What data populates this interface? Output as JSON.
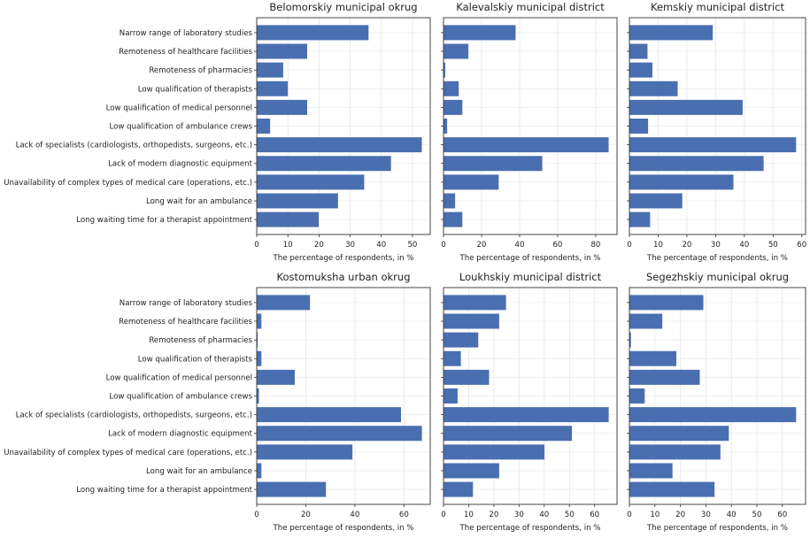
{
  "chart_data": {
    "type": "bar",
    "orientation": "horizontal",
    "bar_color": "#4a6fb0",
    "grid": true,
    "categories": [
      "Narrow range of laboratory studies",
      "Remoteness of healthcare facilities",
      "Remoteness of pharmacies",
      "Low qualification of therapists",
      "Low qualification of medical personnel",
      "Low qualification of ambulance crews",
      "Lack of specialists (cardiologists, orthopedists, surgeons, etc.)",
      "Lack of modern diagnostic equipment",
      "Unavailability of complex types of medical care (operations, etc.)",
      "Long wait for an ambulance",
      "Long waiting time for a therapist appointment"
    ],
    "panels": [
      {
        "title": "Belomorskiy municipal okrug",
        "xlabel": "The percentage of respondents, in %",
        "xlim": [
          0,
          55.7
        ],
        "xticks": [
          0,
          10,
          20,
          30,
          40,
          50
        ],
        "values": [
          35.9,
          16.2,
          8.5,
          10.0,
          16.2,
          4.3,
          53.0,
          43.1,
          34.5,
          26.1,
          19.9
        ]
      },
      {
        "title": "Kalevalskiy municipal district",
        "xlabel": "The percentage of respondents, in %",
        "xlim": [
          0,
          91.2
        ],
        "xticks": [
          0,
          20,
          40,
          60,
          80
        ],
        "values": [
          37.9,
          13.1,
          0.9,
          8.0,
          9.9,
          1.9,
          86.8,
          51.9,
          29.0,
          6.1,
          9.9
        ]
      },
      {
        "title": "Kemskiy municipal district",
        "xlabel": "The percentage of respondents, in %",
        "xlim": [
          0,
          61.3
        ],
        "xticks": [
          0,
          10,
          20,
          30,
          40,
          50,
          60
        ],
        "values": [
          29.0,
          6.3,
          8.0,
          16.8,
          39.4,
          6.5,
          58.0,
          46.7,
          36.2,
          18.4,
          7.2
        ]
      },
      {
        "title": "Kostomuksha urban okrug",
        "xlabel": "The percentage of respondents, in %",
        "xlim": [
          0,
          70.7
        ],
        "xticks": [
          0,
          20,
          40,
          60
        ],
        "values": [
          21.7,
          1.9,
          0.4,
          1.9,
          15.5,
          0.9,
          58.8,
          67.3,
          39.0,
          1.9,
          28.2
        ]
      },
      {
        "title": "Loukhskiy municipal district",
        "xlabel": "The percentage of respondents, in %",
        "xlim": [
          0,
          68.9
        ],
        "xticks": [
          0,
          10,
          20,
          30,
          40,
          50,
          60
        ],
        "values": [
          24.8,
          22.1,
          13.8,
          6.9,
          18.1,
          5.6,
          65.6,
          51.0,
          40.1,
          22.1,
          11.7
        ]
      },
      {
        "title": "Segezhskiy municipal okrug",
        "xlabel": "The percentage of respondents, in %",
        "xlim": [
          0,
          69.1
        ],
        "xticks": [
          0,
          10,
          20,
          30,
          40,
          50,
          60
        ],
        "values": [
          29.0,
          12.9,
          0.6,
          18.4,
          27.6,
          6.0,
          65.4,
          39.0,
          35.7,
          16.9,
          33.4
        ]
      }
    ]
  }
}
